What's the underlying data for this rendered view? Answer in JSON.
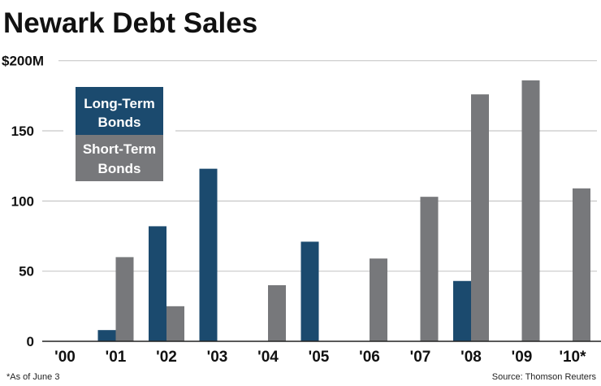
{
  "chart_data": {
    "type": "bar",
    "title": "Newark Debt Sales",
    "xlabel": "",
    "ylabel": "",
    "ylim": [
      0,
      200
    ],
    "yticks": [
      {
        "value": 0,
        "label": "0"
      },
      {
        "value": 50,
        "label": "50"
      },
      {
        "value": 100,
        "label": "100"
      },
      {
        "value": 150,
        "label": "150"
      },
      {
        "value": 200,
        "label": "$200M"
      }
    ],
    "grid": true,
    "legend_position": "top-left",
    "categories": [
      "'00",
      "'01",
      "'02",
      "'03",
      "'04",
      "'05",
      "'06",
      "'07",
      "'08",
      "'09",
      "'10*"
    ],
    "series": [
      {
        "name": "Long-Term Bonds",
        "legend_lines": [
          "Long-Term",
          "Bonds"
        ],
        "color": "#1b4a6e",
        "values": [
          0,
          8,
          82,
          123,
          0,
          71,
          0,
          0,
          43,
          0,
          0
        ]
      },
      {
        "name": "Short-Term Bonds",
        "legend_lines": [
          "Short-Term",
          "Bonds"
        ],
        "color": "#77787b",
        "values": [
          0,
          60,
          25,
          0,
          40,
          0,
          59,
          103,
          176,
          186,
          109
        ]
      }
    ],
    "footnote": "*As of June 3",
    "source": "Source: Thomson Reuters"
  }
}
